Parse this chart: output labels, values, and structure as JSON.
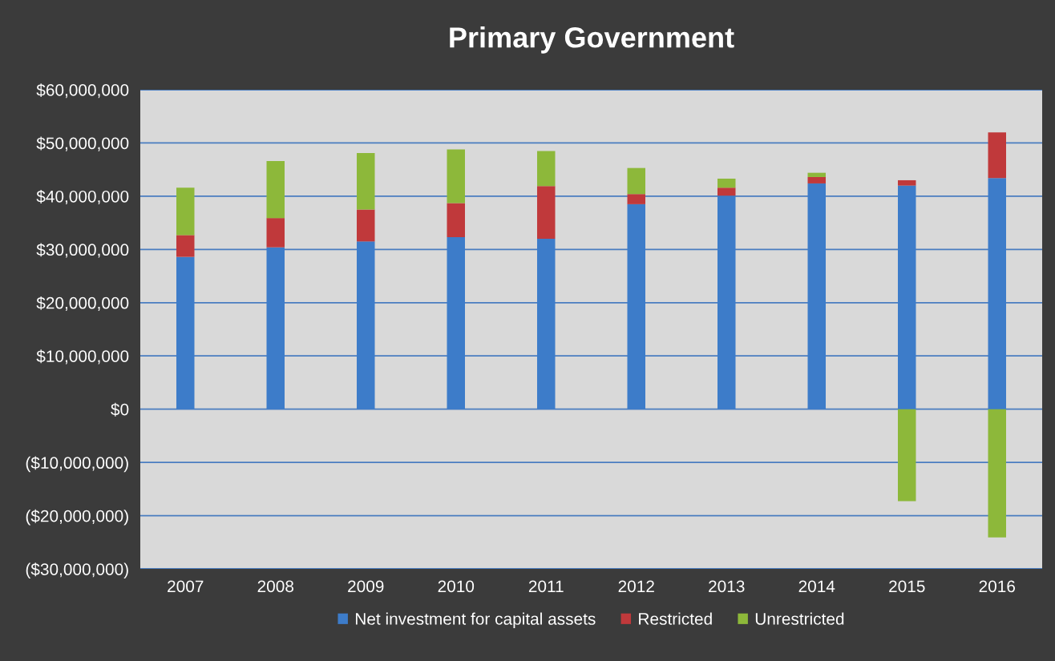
{
  "chart_data": {
    "type": "bar",
    "title": "Primary Government",
    "stacked": true,
    "categories": [
      "2007",
      "2008",
      "2009",
      "2010",
      "2011",
      "2012",
      "2013",
      "2014",
      "2015",
      "2016"
    ],
    "series": [
      {
        "name": "Net investment for capital assets",
        "color": "#3d7cc9",
        "values": [
          28600000,
          30400000,
          31500000,
          32300000,
          32000000,
          38500000,
          40100000,
          42400000,
          42000000,
          43400000
        ]
      },
      {
        "name": "Restricted",
        "color": "#c0393b",
        "values": [
          4100000,
          5500000,
          6000000,
          6400000,
          9900000,
          1900000,
          1500000,
          1200000,
          1000000,
          8600000
        ]
      },
      {
        "name": "Unrestricted",
        "color": "#8db83a",
        "values": [
          8900000,
          10700000,
          10600000,
          10100000,
          6600000,
          4900000,
          1700000,
          800000,
          -17300000,
          -24100000
        ]
      }
    ],
    "ylim": [
      -30000000,
      60000000
    ],
    "yticks": [
      {
        "value": -30000000,
        "label": "($30,000,000)"
      },
      {
        "value": -20000000,
        "label": "($20,000,000)"
      },
      {
        "value": -10000000,
        "label": "($10,000,000)"
      },
      {
        "value": 0,
        "label": "$0"
      },
      {
        "value": 10000000,
        "label": "$10,000,000"
      },
      {
        "value": 20000000,
        "label": "$20,000,000"
      },
      {
        "value": 30000000,
        "label": "$30,000,000"
      },
      {
        "value": 40000000,
        "label": "$40,000,000"
      },
      {
        "value": 50000000,
        "label": "$50,000,000"
      },
      {
        "value": 60000000,
        "label": "$60,000,000"
      }
    ],
    "grid": "y",
    "legend": "bottom"
  }
}
